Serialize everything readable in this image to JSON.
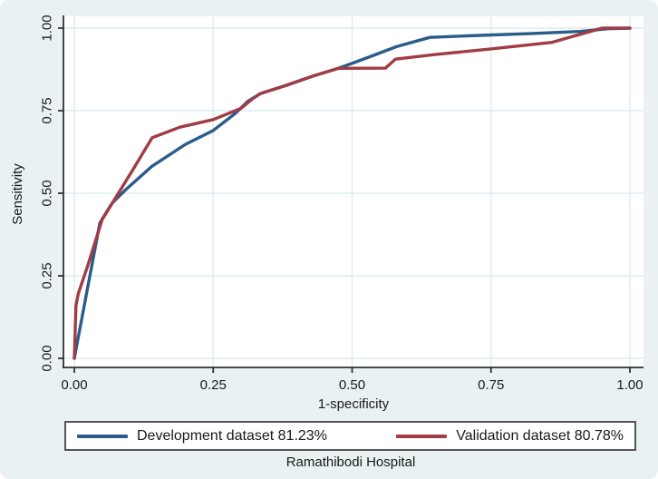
{
  "figure": {
    "background": "#e9f1f2",
    "plot_background": "#ffffff",
    "grid_color": "#dcebf0",
    "axis_color": "#303030",
    "caption": "Ramathibodi Hospital"
  },
  "chart_data": {
    "type": "line",
    "title": "",
    "xlabel": "1-specificity",
    "ylabel": "Sensitivity",
    "xlim": [
      0,
      1
    ],
    "ylim": [
      0,
      1
    ],
    "x_ticks": [
      "0.00",
      "0.25",
      "0.50",
      "0.75",
      "1.00"
    ],
    "y_ticks": [
      "0.00",
      "0.25",
      "0.50",
      "0.75",
      "1.00"
    ],
    "grid": true,
    "legend_position": "bottom",
    "series": [
      {
        "name": "Development dataset 81.23%",
        "color": "#2b5c8a",
        "points": [
          [
            0.0,
            0.0
          ],
          [
            0.005,
            0.045
          ],
          [
            0.046,
            0.41
          ],
          [
            0.068,
            0.47
          ],
          [
            0.092,
            0.51
          ],
          [
            0.14,
            0.582
          ],
          [
            0.2,
            0.648
          ],
          [
            0.25,
            0.69
          ],
          [
            0.29,
            0.742
          ],
          [
            0.312,
            0.778
          ],
          [
            0.335,
            0.802
          ],
          [
            0.38,
            0.826
          ],
          [
            0.43,
            0.855
          ],
          [
            0.475,
            0.878
          ],
          [
            0.53,
            0.912
          ],
          [
            0.58,
            0.944
          ],
          [
            0.64,
            0.972
          ],
          [
            0.73,
            0.978
          ],
          [
            0.83,
            0.984
          ],
          [
            0.91,
            0.99
          ],
          [
            0.96,
            0.998
          ],
          [
            1.0,
            1.0
          ]
        ]
      },
      {
        "name": "Validation dataset 80.78%",
        "color": "#a03c44",
        "points": [
          [
            0.0,
            0.0
          ],
          [
            0.003,
            0.16
          ],
          [
            0.007,
            0.195
          ],
          [
            0.025,
            0.285
          ],
          [
            0.05,
            0.42
          ],
          [
            0.08,
            0.502
          ],
          [
            0.105,
            0.57
          ],
          [
            0.14,
            0.668
          ],
          [
            0.19,
            0.7
          ],
          [
            0.25,
            0.723
          ],
          [
            0.3,
            0.757
          ],
          [
            0.32,
            0.785
          ],
          [
            0.335,
            0.802
          ],
          [
            0.38,
            0.826
          ],
          [
            0.43,
            0.855
          ],
          [
            0.475,
            0.878
          ],
          [
            0.56,
            0.879
          ],
          [
            0.578,
            0.906
          ],
          [
            0.65,
            0.92
          ],
          [
            0.75,
            0.937
          ],
          [
            0.86,
            0.957
          ],
          [
            0.95,
            1.0
          ],
          [
            1.0,
            1.0
          ]
        ]
      }
    ]
  }
}
